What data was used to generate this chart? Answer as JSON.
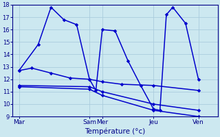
{
  "xlabel": "Température (°c)",
  "background_color": "#cce8f0",
  "grid_color": "#aaccdd",
  "line_color": "#0000cc",
  "ylim": [
    9,
    18
  ],
  "yticks": [
    9,
    10,
    11,
    12,
    13,
    14,
    15,
    16,
    17,
    18
  ],
  "xlim": [
    0,
    32
  ],
  "day_labels": [
    "Mar",
    "Sam",
    "Mer",
    "Jeu",
    "Ven"
  ],
  "day_positions": [
    1,
    12,
    14,
    22,
    29
  ],
  "series1_x": [
    1,
    3,
    6,
    9,
    12,
    14,
    17,
    22,
    29
  ],
  "series1_y": [
    12.7,
    12.9,
    12.5,
    12.1,
    12.0,
    11.8,
    11.6,
    11.5,
    11.1
  ],
  "series2_x": [
    1,
    4,
    6,
    8,
    10,
    12,
    13,
    14,
    16,
    18,
    20,
    22,
    23,
    24,
    25,
    27,
    29
  ],
  "series2_y": [
    12.7,
    14.8,
    17.8,
    16.8,
    16.4,
    12.0,
    11.1,
    16.0,
    15.9,
    13.5,
    11.5,
    9.6,
    9.5,
    17.2,
    17.8,
    16.5,
    12.0
  ],
  "series3_x": [
    1,
    12,
    14,
    22,
    29
  ],
  "series3_y": [
    11.5,
    11.4,
    11.0,
    10.0,
    9.5
  ],
  "series4_x": [
    1,
    12,
    14,
    22,
    29
  ],
  "series4_y": [
    11.4,
    11.2,
    10.7,
    9.5,
    9.0
  ]
}
